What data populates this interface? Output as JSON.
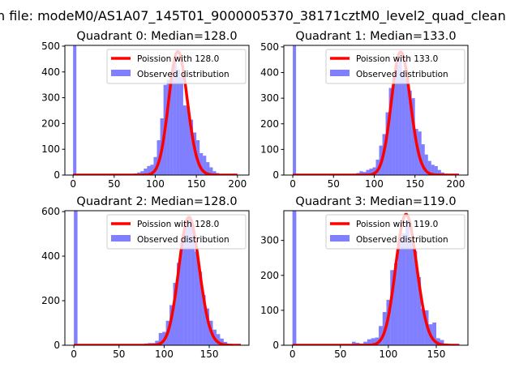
{
  "suptitle": "n file: modeM0/AS1A07_145T01_9000005370_38171cztM0_level2_quad_clean",
  "chart_data": [
    {
      "type": "bar",
      "title": "Quadrant 0: Median=128.0",
      "legend": [
        "Poission with 128.0",
        "Observed distribution"
      ],
      "legend_position": "top-right",
      "xlim": [
        -10,
        214
      ],
      "ylim": [
        0,
        503
      ],
      "xticks": [
        0,
        50,
        100,
        150,
        200
      ],
      "yticks": [
        0,
        100,
        200,
        300,
        400,
        500
      ],
      "mu": 128,
      "poisson_total": 13600,
      "curve_range": [
        0,
        200
      ],
      "bin_width": 4,
      "zero_bin": 1000,
      "bins": [
        70,
        74,
        78,
        82,
        86,
        90,
        94,
        98,
        102,
        106,
        110,
        114,
        118,
        122,
        126,
        130,
        134,
        138,
        142,
        146,
        150,
        154,
        158,
        162,
        166,
        170,
        174,
        178
      ],
      "counts": [
        3,
        6,
        10,
        15,
        25,
        35,
        40,
        70,
        135,
        220,
        350,
        370,
        380,
        445,
        410,
        380,
        270,
        265,
        215,
        165,
        135,
        85,
        75,
        50,
        30,
        15,
        8,
        3
      ]
    },
    {
      "type": "bar",
      "title": "Quadrant 1: Median=133.0",
      "legend": [
        "Poission with 133.0",
        "Observed distribution"
      ],
      "legend_position": "top-right",
      "xlim": [
        -11,
        215
      ],
      "ylim": [
        0,
        506
      ],
      "xticks": [
        0,
        50,
        100,
        150,
        200
      ],
      "yticks": [
        0,
        100,
        200,
        300,
        400,
        500
      ],
      "mu": 133,
      "poisson_total": 13900,
      "curve_range": [
        0,
        204
      ],
      "bin_width": 4,
      "zero_bin": 1000,
      "bins": [
        70,
        74,
        78,
        82,
        86,
        90,
        94,
        98,
        102,
        106,
        110,
        114,
        118,
        122,
        126,
        130,
        134,
        138,
        142,
        146,
        150,
        154,
        158,
        162,
        166,
        170,
        174,
        178,
        182,
        186
      ],
      "counts": [
        3,
        5,
        8,
        15,
        12,
        20,
        25,
        30,
        60,
        115,
        160,
        245,
        340,
        380,
        430,
        460,
        400,
        375,
        330,
        300,
        180,
        170,
        120,
        80,
        55,
        40,
        35,
        20,
        10,
        5
      ]
    },
    {
      "type": "bar",
      "title": "Quadrant 2: Median=128.0",
      "legend": [
        "Poission with 128.0",
        "Observed distribution"
      ],
      "legend_position": "top-right",
      "xlim": [
        -10,
        194
      ],
      "ylim": [
        0,
        604
      ],
      "xticks": [
        0,
        50,
        100,
        150
      ],
      "yticks": [
        0,
        200,
        400,
        600
      ],
      "mu": 128,
      "poisson_total": 16300,
      "curve_range": [
        0,
        185
      ],
      "bin_width": 4,
      "zero_bin": 1000,
      "bins": [
        66,
        70,
        74,
        78,
        82,
        86,
        90,
        94,
        98,
        102,
        106,
        110,
        114,
        118,
        122,
        126,
        130,
        134,
        138,
        142,
        146,
        150,
        154,
        158,
        162,
        166,
        170,
        174
      ],
      "counts": [
        5,
        3,
        5,
        8,
        10,
        10,
        20,
        55,
        60,
        110,
        180,
        280,
        370,
        460,
        540,
        580,
        540,
        420,
        330,
        225,
        165,
        110,
        70,
        50,
        30,
        15,
        5,
        3
      ]
    },
    {
      "type": "bar",
      "title": "Quadrant 3: Median=119.0",
      "legend": [
        "Poission with 119.0",
        "Observed distribution"
      ],
      "legend_position": "top-right",
      "xlim": [
        -9,
        183
      ],
      "ylim": [
        0,
        385
      ],
      "xticks": [
        0,
        50,
        100,
        150
      ],
      "yticks": [
        0,
        100,
        200,
        300
      ],
      "mu": 119,
      "poisson_total": 10250,
      "curve_range": [
        0,
        174
      ],
      "bin_width": 4,
      "zero_bin": 1000,
      "bins": [
        62,
        66,
        70,
        74,
        78,
        82,
        86,
        90,
        94,
        98,
        102,
        106,
        110,
        114,
        118,
        122,
        126,
        130,
        134,
        138,
        142,
        146,
        150,
        154,
        158
      ],
      "counts": [
        10,
        7,
        5,
        10,
        17,
        20,
        22,
        55,
        95,
        130,
        215,
        235,
        300,
        320,
        355,
        300,
        270,
        195,
        105,
        100,
        60,
        65,
        20,
        15,
        5
      ]
    }
  ],
  "colors": {
    "hist": "#0000ff",
    "curve": "#ff0000"
  }
}
